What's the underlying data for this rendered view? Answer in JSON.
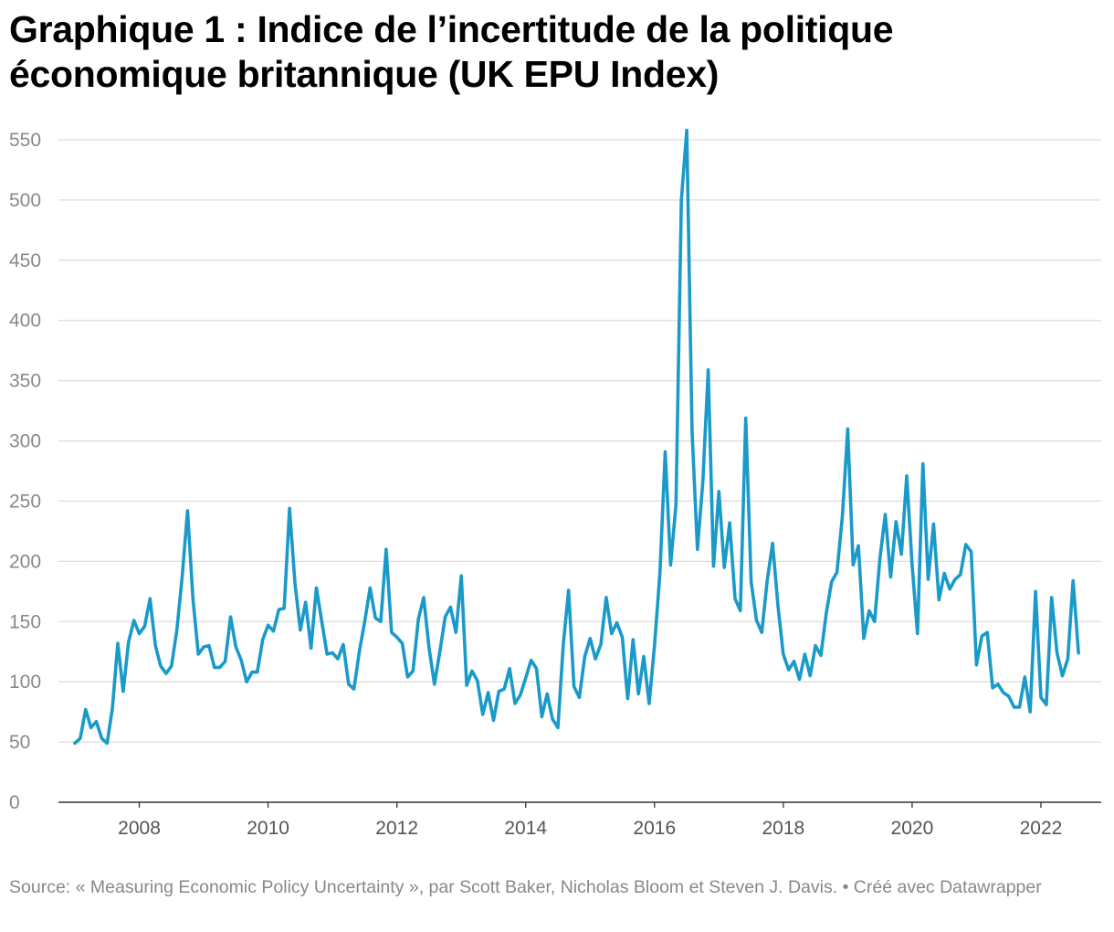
{
  "title": "Graphique 1 : Indice de l’incertitude de la politique économique britannique (UK EPU Index)",
  "footer": "Source: « Measuring Economic Policy Uncertainty », par Scott Baker, Nicholas Bloom et Steven J. Davis. • Créé avec Datawrapper",
  "chart_data": {
    "type": "line",
    "title": "Graphique 1 : Indice de l’incertitude de la politique économique britannique (UK EPU Index)",
    "xlabel": "",
    "ylabel": "",
    "ylim": [
      0,
      550
    ],
    "yticks": [
      0,
      50,
      100,
      150,
      200,
      250,
      300,
      350,
      400,
      450,
      500,
      550
    ],
    "xlim": [
      2007.0,
      2022.6667
    ],
    "xticks": [
      2008,
      2010,
      2012,
      2014,
      2016,
      2018,
      2020,
      2022
    ],
    "grid": true,
    "line_color": "#1a9ac9",
    "start": {
      "year": 2007,
      "month": 1
    },
    "frequency": "monthly",
    "series": [
      {
        "name": "UK EPU Index",
        "values": [
          49,
          53,
          77,
          62,
          67,
          53,
          49,
          78,
          132,
          92,
          133,
          151,
          140,
          146,
          169,
          130,
          113,
          107,
          113,
          143,
          188,
          242,
          169,
          123,
          129,
          130,
          112,
          112,
          117,
          154,
          129,
          118,
          100,
          108,
          108,
          135,
          147,
          142,
          160,
          161,
          244,
          182,
          143,
          166,
          128,
          178,
          150,
          123,
          124,
          119,
          131,
          98,
          94,
          125,
          150,
          178,
          153,
          150,
          210,
          141,
          137,
          132,
          104,
          109,
          152,
          170,
          128,
          98,
          125,
          154,
          162,
          141,
          188,
          97,
          109,
          101,
          73,
          91,
          68,
          92,
          94,
          111,
          82,
          89,
          103,
          118,
          111,
          71,
          90,
          69,
          62,
          131,
          176,
          96,
          87,
          121,
          136,
          119,
          131,
          170,
          140,
          149,
          137,
          86,
          135,
          90,
          121,
          82,
          130,
          190,
          291,
          197,
          247,
          500,
          558,
          308,
          210,
          266,
          359,
          196,
          258,
          195,
          232,
          169,
          159,
          319,
          183,
          151,
          141,
          184,
          215,
          163,
          123,
          110,
          117,
          102,
          123,
          105,
          130,
          122,
          157,
          183,
          191,
          237,
          310,
          197,
          213,
          136,
          159,
          150,
          202,
          239,
          187,
          233,
          206,
          271,
          197,
          140,
          281,
          185,
          231,
          168,
          190,
          177,
          185,
          189,
          214,
          208,
          114,
          138,
          141,
          95,
          98,
          91,
          88,
          79,
          79,
          104,
          75,
          175,
          87,
          81,
          170,
          124,
          105,
          119,
          184,
          124
        ]
      }
    ]
  }
}
